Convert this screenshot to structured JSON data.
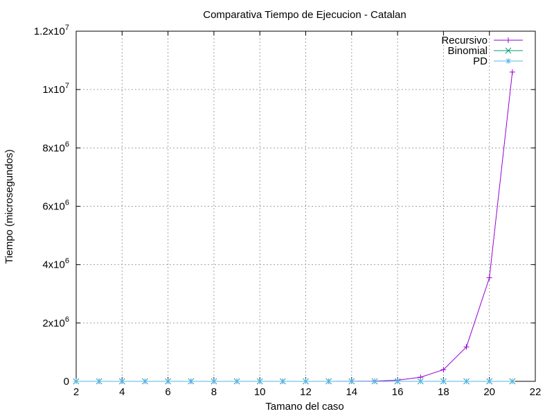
{
  "chart_data": {
    "type": "line",
    "title": "Comparativa Tiempo de Ejecucion - Catalan",
    "xlabel": "Tamano del caso",
    "ylabel": "Tiempo (microsegundos)",
    "xlim": [
      2,
      22
    ],
    "ylim": [
      0,
      12000000
    ],
    "xticks": [
      2,
      4,
      6,
      8,
      10,
      12,
      14,
      16,
      18,
      20,
      22
    ],
    "yticks": [
      {
        "value": 0,
        "mant": "0",
        "exp": ""
      },
      {
        "value": 2000000,
        "mant": "2x10",
        "exp": "6"
      },
      {
        "value": 4000000,
        "mant": "4x10",
        "exp": "6"
      },
      {
        "value": 6000000,
        "mant": "6x10",
        "exp": "6"
      },
      {
        "value": 8000000,
        "mant": "8x10",
        "exp": "6"
      },
      {
        "value": 10000000,
        "mant": "1x10",
        "exp": "7"
      },
      {
        "value": 12000000,
        "mant": "1.2x10",
        "exp": "7"
      }
    ],
    "grid": true,
    "legend_position": "top-right",
    "series": [
      {
        "name": "Recursivo",
        "color": "#9400d3",
        "marker": "plus",
        "x": [
          2,
          3,
          4,
          5,
          6,
          7,
          8,
          9,
          10,
          11,
          12,
          13,
          14,
          15,
          16,
          17,
          18,
          19,
          20,
          21
        ],
        "y": [
          0,
          0,
          0,
          0,
          0,
          0,
          0,
          0,
          0,
          0,
          0,
          0,
          2000,
          8000,
          40000,
          140000,
          400000,
          1180000,
          3550000,
          10600000
        ]
      },
      {
        "name": "Binomial",
        "color": "#009e73",
        "marker": "cross",
        "x": [
          2,
          3,
          4,
          5,
          6,
          7,
          8,
          9,
          10,
          11,
          12,
          13,
          14,
          15,
          16,
          17,
          18,
          19,
          20,
          21
        ],
        "y": [
          0,
          0,
          0,
          0,
          0,
          0,
          0,
          0,
          0,
          0,
          0,
          0,
          0,
          0,
          0,
          0,
          0,
          0,
          0,
          0
        ]
      },
      {
        "name": "PD",
        "color": "#56b4e9",
        "marker": "star",
        "x": [
          2,
          3,
          4,
          5,
          6,
          7,
          8,
          9,
          10,
          11,
          12,
          13,
          14,
          15,
          16,
          17,
          18,
          19,
          20,
          21
        ],
        "y": [
          0,
          0,
          0,
          0,
          0,
          0,
          0,
          0,
          0,
          0,
          0,
          0,
          0,
          0,
          0,
          0,
          0,
          0,
          0,
          0
        ]
      }
    ]
  }
}
